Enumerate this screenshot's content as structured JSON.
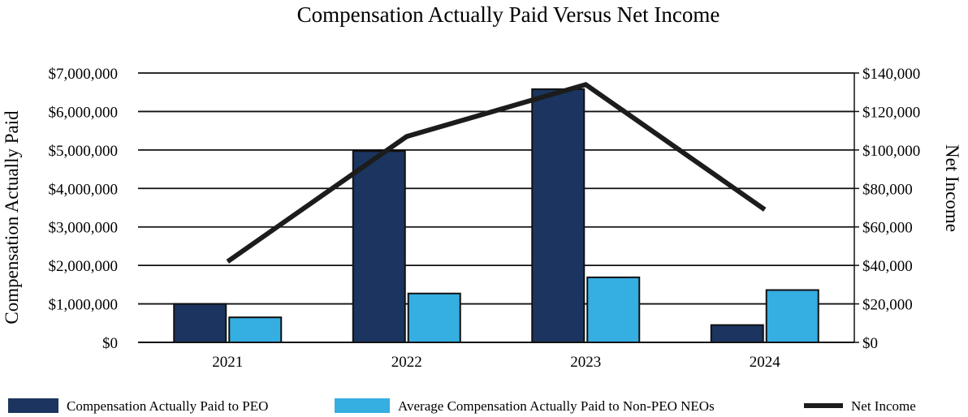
{
  "chart_data": {
    "type": "bar",
    "title": "Compensation Actually Paid Versus Net Income",
    "categories": [
      "2021",
      "2022",
      "2023",
      "2024"
    ],
    "ylabel": "Compensation Actually Paid",
    "y2label": "Net Income",
    "ylim": [
      0,
      7000000
    ],
    "y2lim": [
      0,
      140000
    ],
    "yticks": [
      "$0",
      "$1,000,000",
      "$2,000,000",
      "$3,000,000",
      "$4,000,000",
      "$5,000,000",
      "$6,000,000",
      "$7,000,000"
    ],
    "y2ticks": [
      "$0",
      "$20,000",
      "$40,000",
      "$60,000",
      "$80,000",
      "$100,000",
      "$120,000",
      "$140,000"
    ],
    "grid": true,
    "legend_position": "bottom",
    "series": [
      {
        "name": "Compensation Actually Paid to PEO",
        "kind": "bar",
        "axis": "left",
        "color": "#1b3560",
        "values": [
          1000000,
          4970000,
          6580000,
          450000
        ]
      },
      {
        "name": "Average Compensation Actually Paid to Non-PEO NEOs",
        "kind": "bar",
        "axis": "left",
        "color": "#35aee2",
        "values": [
          650000,
          1270000,
          1690000,
          1360000
        ]
      },
      {
        "name": "Net Income",
        "kind": "line",
        "axis": "right",
        "color": "#1c1c1c",
        "values": [
          42000,
          107000,
          134000,
          69000
        ]
      }
    ]
  }
}
